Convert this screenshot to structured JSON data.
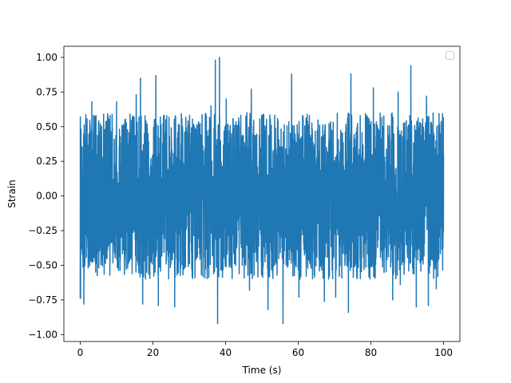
{
  "chart_data": {
    "type": "line",
    "title": "",
    "xlabel": "Time (s)",
    "ylabel": "Strain",
    "xlim": [
      -4.5,
      104.5
    ],
    "ylim": [
      -1.05,
      1.08
    ],
    "x_ticks": [
      0,
      20,
      40,
      60,
      80,
      100
    ],
    "x_tick_labels": [
      "0",
      "20",
      "40",
      "60",
      "80",
      "100"
    ],
    "y_ticks": [
      -1.0,
      -0.75,
      -0.5,
      -0.25,
      0.0,
      0.25,
      0.5,
      0.75,
      1.0
    ],
    "y_tick_labels": [
      "−1.00",
      "−0.75",
      "−0.50",
      "−0.25",
      "0.00",
      "0.25",
      "0.50",
      "0.75",
      "1.00"
    ],
    "grid": false,
    "legend": {
      "placement": "top-right",
      "entries": []
    },
    "series": [
      {
        "color": "#1f77b4",
        "x_range": [
          0,
          100
        ],
        "typical_envelope": [
          -0.6,
          0.6
        ],
        "peaks": [
          {
            "x": 0.1,
            "y": -0.74
          },
          {
            "x": 1.0,
            "y": -0.78
          },
          {
            "x": 3.2,
            "y": 0.68
          },
          {
            "x": 10.0,
            "y": 0.68
          },
          {
            "x": 15.4,
            "y": 0.73
          },
          {
            "x": 16.6,
            "y": 0.85
          },
          {
            "x": 17.2,
            "y": -0.78
          },
          {
            "x": 20.8,
            "y": 0.87
          },
          {
            "x": 21.5,
            "y": -0.79
          },
          {
            "x": 26.0,
            "y": -0.8
          },
          {
            "x": 36.0,
            "y": 0.65
          },
          {
            "x": 37.2,
            "y": 0.98
          },
          {
            "x": 37.8,
            "y": -0.92
          },
          {
            "x": 38.3,
            "y": 1.0
          },
          {
            "x": 40.2,
            "y": 0.7
          },
          {
            "x": 46.6,
            "y": -0.68
          },
          {
            "x": 47.1,
            "y": 0.77
          },
          {
            "x": 51.7,
            "y": -0.82
          },
          {
            "x": 55.8,
            "y": -0.92
          },
          {
            "x": 58.2,
            "y": 0.88
          },
          {
            "x": 60.2,
            "y": -0.73
          },
          {
            "x": 67.2,
            "y": -0.76
          },
          {
            "x": 70.3,
            "y": -0.73
          },
          {
            "x": 73.8,
            "y": -0.84
          },
          {
            "x": 74.5,
            "y": 0.88
          },
          {
            "x": 80.7,
            "y": 0.78
          },
          {
            "x": 86.0,
            "y": -0.75
          },
          {
            "x": 87.5,
            "y": 0.75
          },
          {
            "x": 88.1,
            "y": -0.64
          },
          {
            "x": 91.0,
            "y": 0.94
          },
          {
            "x": 92.5,
            "y": -0.8
          },
          {
            "x": 95.3,
            "y": 0.72
          },
          {
            "x": 95.8,
            "y": -0.79
          },
          {
            "x": 98.0,
            "y": -0.67
          }
        ]
      }
    ]
  }
}
